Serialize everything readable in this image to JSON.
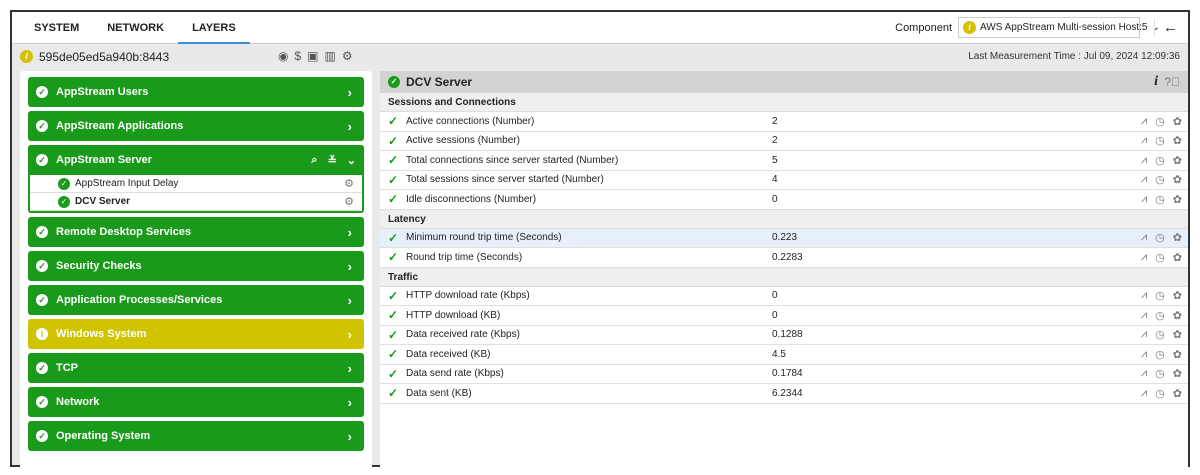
{
  "tabs": [
    "SYSTEM",
    "NETWORK",
    "LAYERS"
  ],
  "active_tab": "LAYERS",
  "component": {
    "label": "Component",
    "value": "AWS AppStream Multi-session Host:5"
  },
  "host": "595de05ed5a940b:8443",
  "last_measurement": "Last Measurement Time : Jul 09, 2024 12:09:36",
  "layers": [
    {
      "label": "AppStream Users",
      "status": "ok"
    },
    {
      "label": "AppStream Applications",
      "status": "ok"
    },
    {
      "label": "AppStream Server",
      "status": "ok",
      "expanded": true,
      "children": [
        "AppStream Input Delay",
        "DCV Server"
      ]
    },
    {
      "label": "Remote Desktop Services",
      "status": "ok"
    },
    {
      "label": "Security Checks",
      "status": "ok"
    },
    {
      "label": "Application Processes/Services",
      "status": "ok"
    },
    {
      "label": "Windows System",
      "status": "warning"
    },
    {
      "label": "TCP",
      "status": "ok"
    },
    {
      "label": "Network",
      "status": "ok"
    },
    {
      "label": "Operating System",
      "status": "ok"
    }
  ],
  "panel": {
    "title": "DCV Server",
    "sections": [
      {
        "title": "Sessions and Connections",
        "rows": [
          [
            "Active connections (Number)",
            "2"
          ],
          [
            "Active sessions (Number)",
            "2"
          ],
          [
            "Total connections since server started (Number)",
            "5"
          ],
          [
            "Total sessions since server started (Number)",
            "4"
          ],
          [
            "Idle disconnections (Number)",
            "0"
          ]
        ]
      },
      {
        "title": "Latency",
        "rows": [
          [
            "Minimum round trip time (Seconds)",
            "0.223"
          ],
          [
            "Round trip time (Seconds)",
            "0.2283"
          ]
        ]
      },
      {
        "title": "Traffic",
        "rows": [
          [
            "HTTP download rate (Kbps)",
            "0"
          ],
          [
            "HTTP download (KB)",
            "0"
          ],
          [
            "Data received rate (Kbps)",
            "0.1288"
          ],
          [
            "Data received (KB)",
            "4.5"
          ],
          [
            "Data send rate (Kbps)",
            "0.1784"
          ],
          [
            "Data sent (KB)",
            "6.2344"
          ]
        ]
      }
    ]
  },
  "colors": {
    "ok": "#1a9a1a",
    "warning": "#d0c400",
    "tab_accent": "#3a8fd8"
  }
}
